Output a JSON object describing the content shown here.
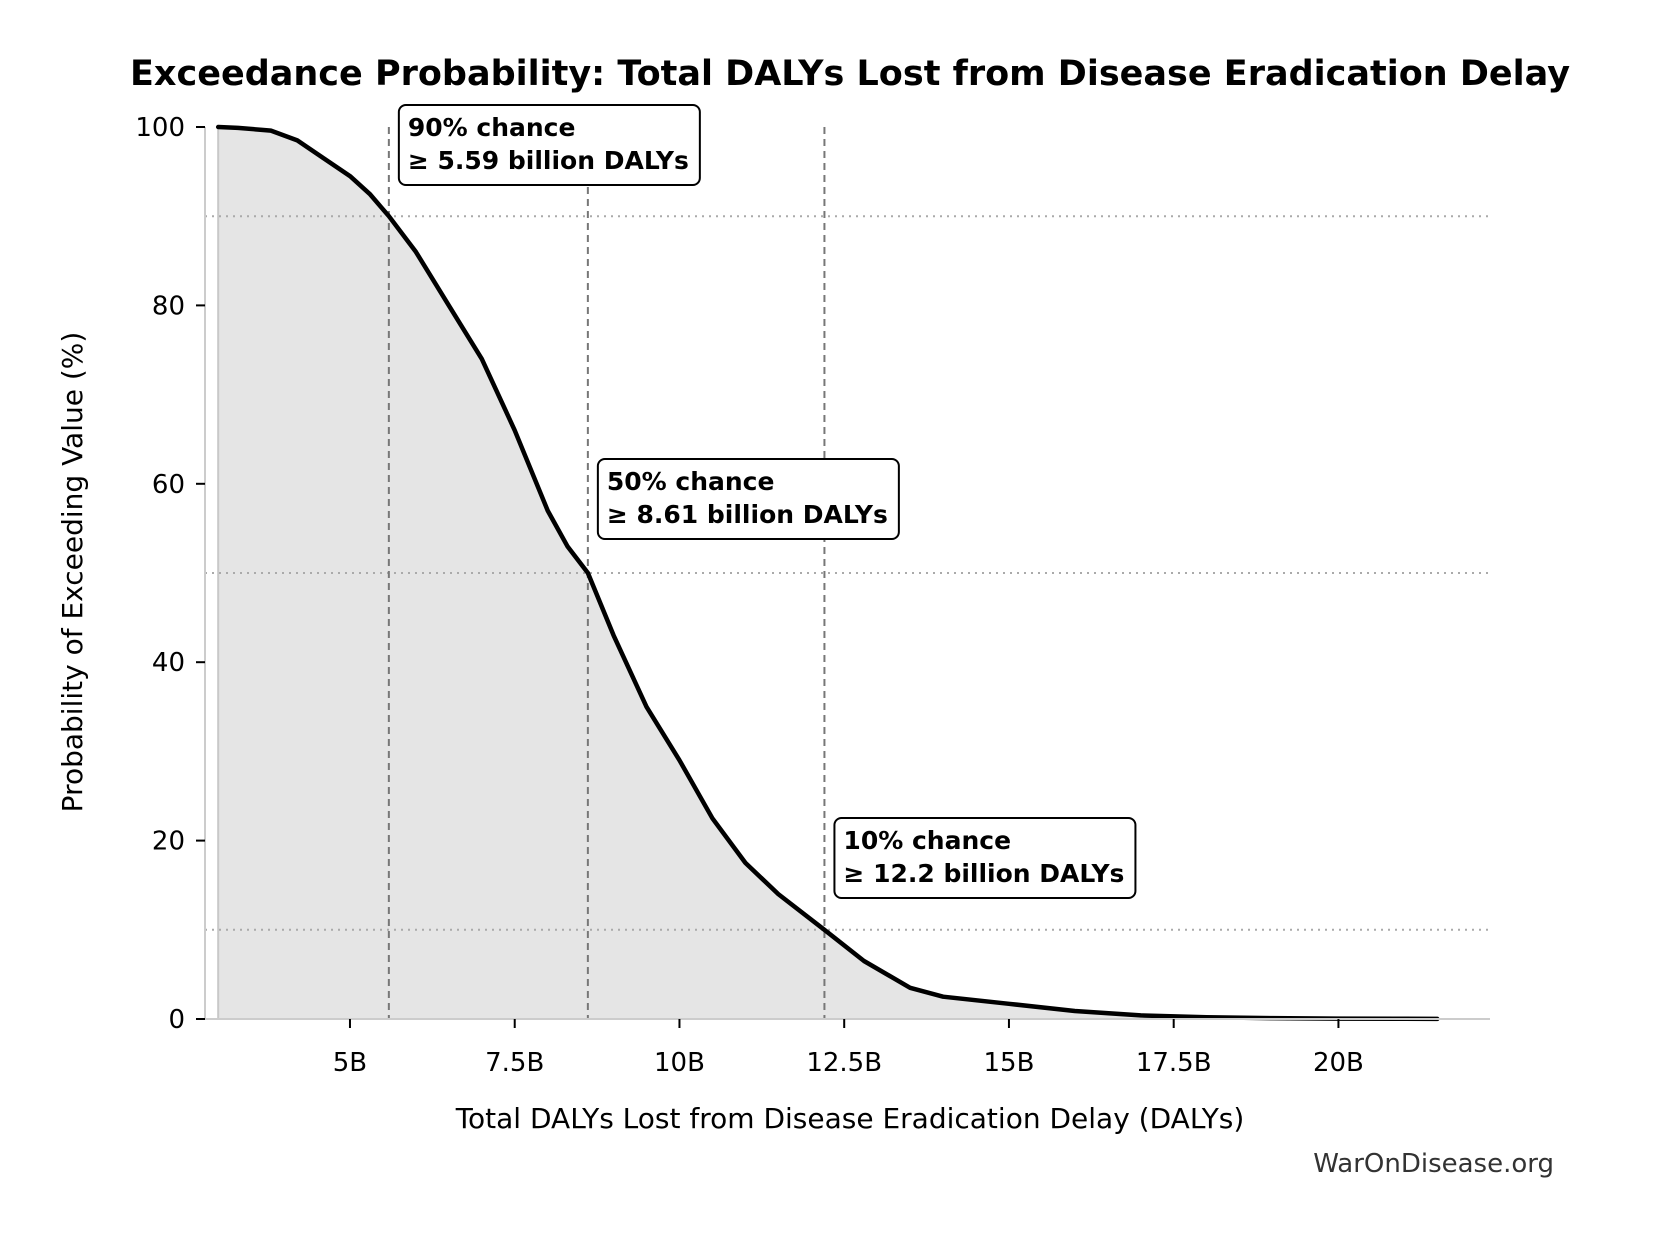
{
  "watermark": "WarOnDisease.org",
  "colors": {
    "line": "#000000",
    "fill": "#e5e5e5",
    "percentile_line": "#777777",
    "reference_line": "#aaaaaa",
    "axis": "#cccccc"
  },
  "chart_data": {
    "type": "area",
    "title": "Exceedance Probability: Total DALYs Lost from Disease Eradication Delay",
    "xlabel": "Total DALYs Lost from Disease Eradication Delay (DALYs)",
    "ylabel": "Probability of Exceeding Value (%)",
    "xlim": [
      2800000000,
      22300000000
    ],
    "ylim": [
      0,
      100
    ],
    "x_ticks": [
      5000000000,
      7500000000,
      10000000000,
      12500000000,
      15000000000,
      17500000000,
      20000000000
    ],
    "x_tick_labels": [
      "5B",
      "7.5B",
      "10B",
      "12.5B",
      "15B",
      "17.5B",
      "20B"
    ],
    "y_ticks": [
      0,
      20,
      40,
      60,
      80,
      100
    ],
    "y_tick_labels": [
      "0",
      "20",
      "40",
      "60",
      "80",
      "100"
    ],
    "grid": false,
    "legend": "none",
    "series": [
      {
        "x": [
          3000000000,
          3300000000,
          3800000000,
          4200000000,
          4600000000,
          5000000000,
          5300000000,
          5590000000,
          6000000000,
          6500000000,
          7000000000,
          7500000000,
          8000000000,
          8300000000,
          8610000000,
          9000000000,
          9500000000,
          10000000000,
          10500000000,
          11000000000,
          11500000000,
          12200000000,
          12800000000,
          13500000000,
          14000000000,
          15000000000,
          16000000000,
          17000000000,
          18000000000,
          19000000000,
          20000000000,
          21000000000,
          21500000000
        ],
        "y": [
          100,
          99.9,
          99.6,
          98.5,
          96.5,
          94.5,
          92.5,
          90,
          86,
          80,
          74,
          66,
          57,
          53,
          50,
          43,
          35,
          29,
          22.5,
          17.5,
          14,
          10,
          6.5,
          3.5,
          2.5,
          1.7,
          0.9,
          0.4,
          0.2,
          0.1,
          0.05,
          0.02,
          0.01
        ]
      }
    ],
    "reference_lines_y": [
      90,
      50,
      10
    ],
    "percentile_lines_x": [
      5590000000,
      8610000000,
      12200000000
    ],
    "annotations": [
      {
        "x": 5590000000,
        "line1": "90% chance",
        "line2": "≥ 5.59 billion DALYs"
      },
      {
        "x": 8610000000,
        "line1": "50% chance",
        "line2": "≥ 8.61 billion DALYs"
      },
      {
        "x": 12200000000,
        "line1": "10% chance",
        "line2": "≥ 12.2 billion DALYs"
      }
    ]
  }
}
